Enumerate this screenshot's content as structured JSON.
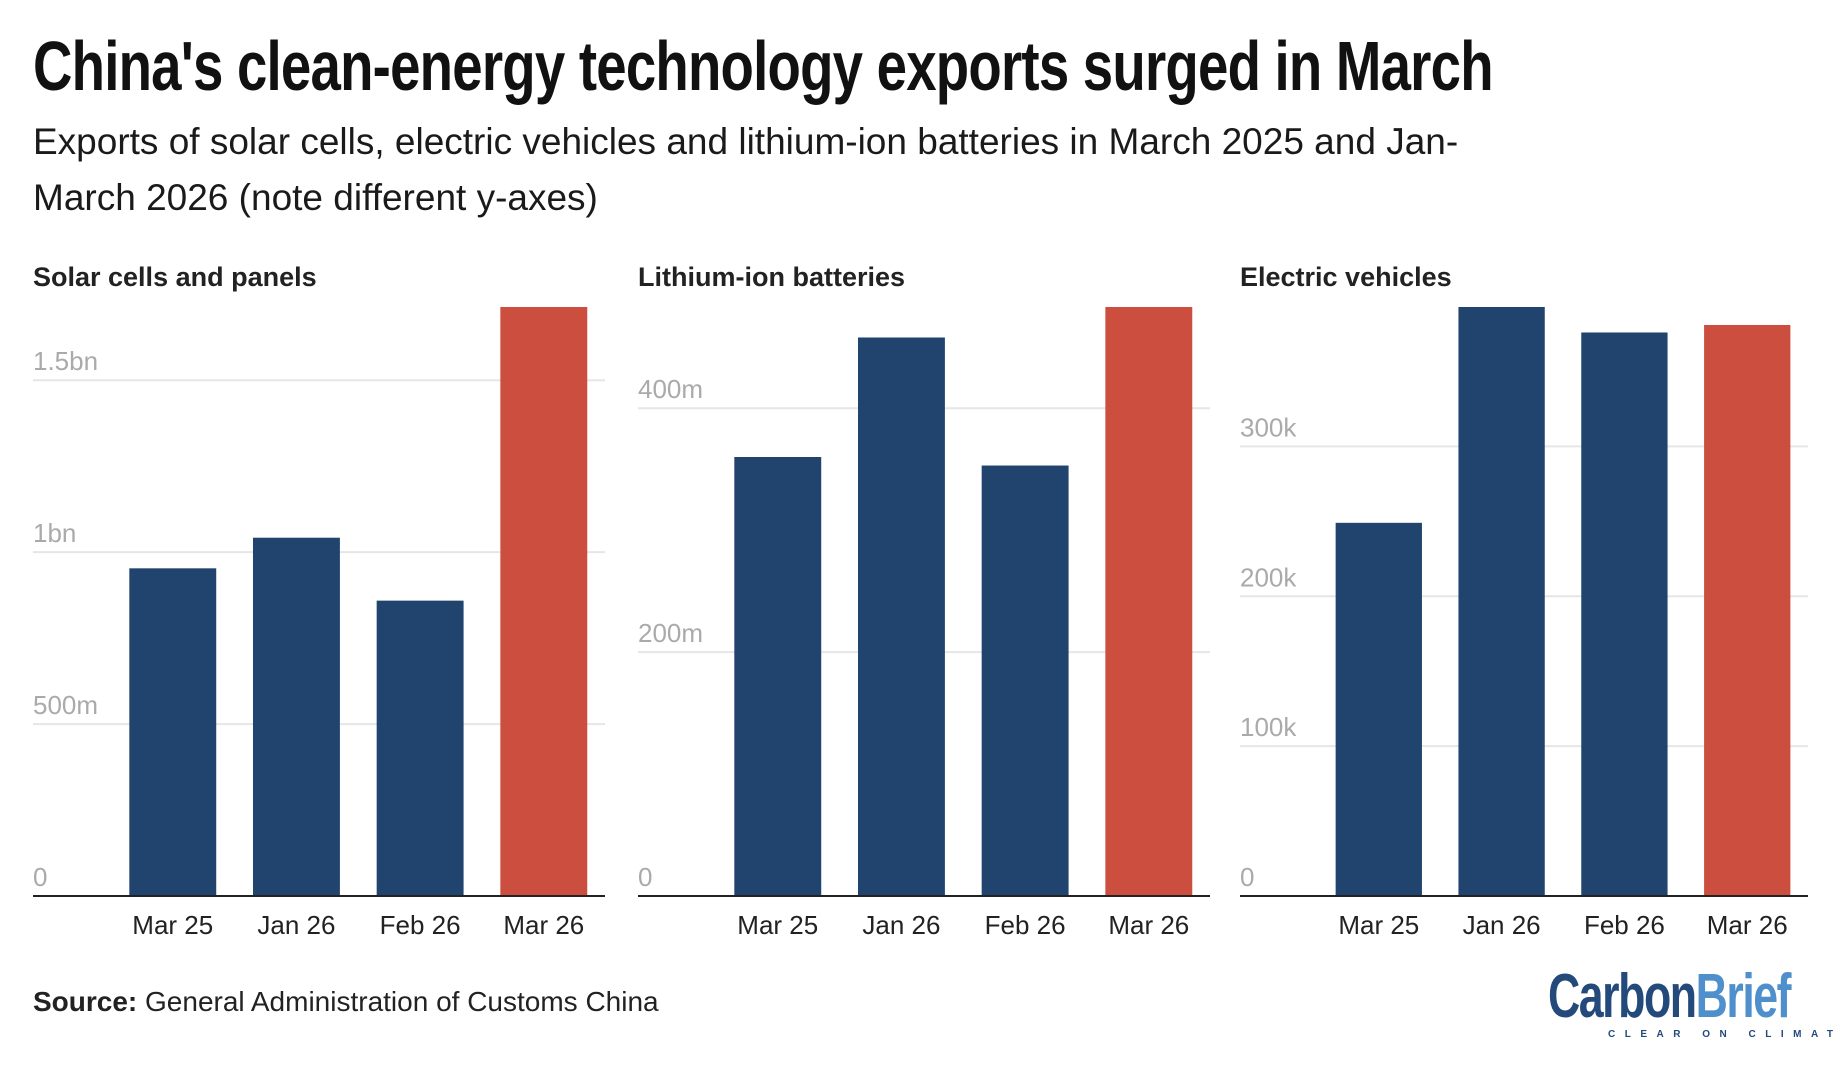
{
  "title": "China's clean-energy technology exports surged in March",
  "subtitle": "Exports of solar cells, electric vehicles and lithium-ion batteries in March 2025 and Jan-March 2026 (note different y-axes)",
  "source_label": "Source:",
  "source_text": "General Administration of Customs China",
  "logo": {
    "part1": "Carbon",
    "part2": "Brief",
    "tagline": "CLEAR ON CLIMATE"
  },
  "colors": {
    "base": "#21446e",
    "highlight": "#cc4e3f",
    "grid": "#e6e6e6",
    "tick": "#aaaaaa",
    "axis": "#222222"
  },
  "chart_data": [
    {
      "type": "bar",
      "title": "Solar cells and panels",
      "categories": [
        "Mar 25",
        "Jan 26",
        "Feb 26",
        "Mar 26"
      ],
      "values": [
        953000000,
        1042000000,
        859000000,
        1713000000
      ],
      "highlight": [
        false,
        false,
        false,
        true
      ],
      "yticks": [
        0,
        500000000,
        1000000000,
        1500000000
      ],
      "ytick_labels": [
        "0",
        "500m",
        "1bn",
        "1.5bn"
      ],
      "ylim": [
        0,
        1713000000
      ],
      "grid": true
    },
    {
      "type": "bar",
      "title": "Lithium-ion batteries",
      "categories": [
        "Mar 25",
        "Jan 26",
        "Feb 26",
        "Mar 26"
      ],
      "values": [
        360000000,
        458000000,
        353000000,
        483000000
      ],
      "highlight": [
        false,
        false,
        false,
        true
      ],
      "yticks": [
        0,
        200000000,
        400000000
      ],
      "ytick_labels": [
        "0",
        "200m",
        "400m"
      ],
      "ylim": [
        0,
        483000000
      ],
      "grid": true
    },
    {
      "type": "bar",
      "title": "Electric vehicles",
      "categories": [
        "Mar 25",
        "Jan 26",
        "Feb 26",
        "Mar 26"
      ],
      "values": [
        249000,
        393000,
        376000,
        381000
      ],
      "highlight": [
        false,
        false,
        false,
        true
      ],
      "yticks": [
        0,
        100000,
        200000,
        300000
      ],
      "ytick_labels": [
        "0",
        "100k",
        "200k",
        "300k"
      ],
      "ylim": [
        0,
        393000
      ],
      "grid": true
    }
  ]
}
